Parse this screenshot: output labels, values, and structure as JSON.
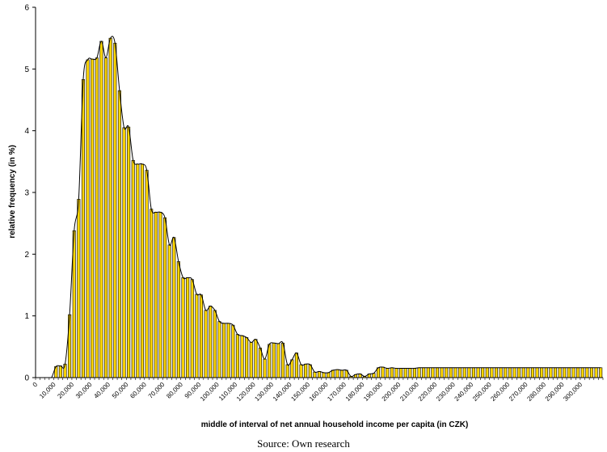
{
  "chart_data": {
    "type": "bar",
    "title": "",
    "xlabel": "middle of interval of net annual household income per capita (in CZK)",
    "ylabel": "relative frequency (in %)",
    "ylim": [
      0,
      6
    ],
    "yticks": [
      "0",
      "1",
      "2",
      "3",
      "4",
      "5",
      "6"
    ],
    "grid": false,
    "legend": "none",
    "x_tick_labels": [
      "0",
      "10,000",
      "20,000",
      "30,000",
      "40,000",
      "50,000",
      "60,000",
      "70,000",
      "80,000",
      "90,000",
      "100,000",
      "110,000",
      "120,000",
      "130,000",
      "140,000",
      "150,000",
      "160,000",
      "170,000",
      "180,000",
      "190,000",
      "200,000",
      "210,000",
      "220,000",
      "230,000",
      "240,000",
      "250,000",
      "260,000",
      "270,000",
      "280,000",
      "290,000",
      "300,000"
    ],
    "bin_width": 2500,
    "x": [
      0,
      2500,
      5000,
      7500,
      10000,
      12500,
      15000,
      17500,
      20000,
      22500,
      25000,
      27500,
      30000,
      32500,
      35000,
      37500,
      40000,
      42500,
      45000,
      47500,
      50000,
      52500,
      55000,
      57500,
      60000,
      62500,
      65000,
      67500,
      70000,
      72500,
      75000,
      77500,
      80000,
      82500,
      85000,
      87500,
      90000,
      92500,
      95000,
      97500,
      100000,
      102500,
      105000,
      107500,
      110000,
      112500,
      115000,
      117500,
      120000,
      122500,
      125000,
      127500,
      130000,
      132500,
      135000,
      137500,
      140000,
      142500,
      145000,
      147500,
      150000,
      152500,
      155000,
      157500,
      160000,
      162500,
      165000,
      167500,
      170000,
      172500,
      175000,
      177500,
      180000,
      182500,
      185000,
      187500,
      190000,
      192500,
      195000,
      197500,
      200000,
      202500,
      205000,
      207500,
      210000,
      212500,
      215000,
      217500,
      220000,
      222500,
      225000,
      227500,
      230000,
      232500,
      235000,
      237500,
      240000,
      242500,
      245000,
      247500,
      250000,
      252500,
      255000,
      257500,
      260000,
      262500,
      265000,
      267500,
      270000,
      272500,
      275000,
      277500,
      280000,
      282500,
      285000,
      287500,
      290000,
      292500,
      295000,
      297500,
      300000,
      302500,
      305000,
      307500,
      310000
    ],
    "values": [
      0,
      0,
      0,
      0,
      0.18,
      0.19,
      0.22,
      1.02,
      2.38,
      2.89,
      4.83,
      5.15,
      5.16,
      5.18,
      5.45,
      5.18,
      5.5,
      5.42,
      4.65,
      4.05,
      4.06,
      3.52,
      3.46,
      3.46,
      3.36,
      2.73,
      2.68,
      2.68,
      2.59,
      2.15,
      2.27,
      1.88,
      1.62,
      1.62,
      1.59,
      1.35,
      1.34,
      1.09,
      1.16,
      1.09,
      0.91,
      0.88,
      0.88,
      0.85,
      0.7,
      0.68,
      0.65,
      0.57,
      0.62,
      0.48,
      0.3,
      0.54,
      0.56,
      0.55,
      0.56,
      0.21,
      0.29,
      0.4,
      0.21,
      0.22,
      0.21,
      0.09,
      0.1,
      0.08,
      0.08,
      0.12,
      0.13,
      0.12,
      0.12,
      0.02,
      0.05,
      0.06,
      0.02,
      0.06,
      0.07,
      0.16,
      0.17,
      0.15,
      0.16,
      0.15,
      0.15,
      0.15,
      0.15,
      0.15,
      0.16,
      0.16,
      0.16,
      0.16,
      0.16,
      0.16,
      0.16,
      0.16,
      0.16,
      0.16,
      0.16,
      0.16,
      0.16,
      0.16,
      0.16,
      0.16,
      0.16,
      0.16,
      0.16,
      0.16,
      0.16,
      0.16,
      0.16,
      0.16,
      0.16,
      0.16,
      0.16,
      0.16,
      0.16,
      0.16,
      0.16,
      0.16,
      0.16,
      0.16,
      0.16,
      0.16,
      0.16,
      0.16,
      0.16,
      0.16,
      0.16
    ],
    "bar_color": "#FFD700",
    "bar_edge_color": "#000000",
    "curve_color": "#000000"
  },
  "source_text": "Source: Own research"
}
